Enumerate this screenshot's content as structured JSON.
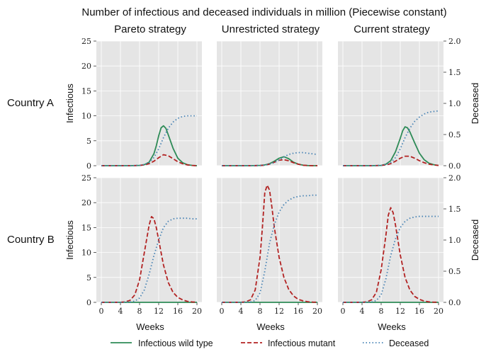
{
  "figure": {
    "title": "Number of infectious and deceased individuals in million (Piecewise constant)",
    "column_titles": [
      "Pareto strategy",
      "Unrestricted strategy",
      "Current strategy"
    ],
    "row_labels": [
      "Country A",
      "Country B"
    ],
    "left_axis_label": "Infectious",
    "right_axis_label": "Deceased",
    "x_axis_label": "Weeks",
    "legend": [
      {
        "label": "Infectious wild type",
        "color": "#2e8b57",
        "style": "solid"
      },
      {
        "label": "Infectious mutant",
        "color": "#b22222",
        "style": "dashed"
      },
      {
        "label": "Deceased",
        "color": "#4682b4",
        "style": "dotted"
      }
    ]
  },
  "chart_data": {
    "type": "line",
    "x_ticks": [
      0,
      4,
      8,
      12,
      16,
      20
    ],
    "left_ticks": [
      0,
      5,
      10,
      15,
      20,
      25
    ],
    "right_ticks": [
      "0.0",
      "0.5",
      "1.0",
      "1.5",
      "2.0"
    ],
    "xlim": [
      0,
      20
    ],
    "ylim_left": [
      0,
      25
    ],
    "ylim_right": [
      0,
      2.0
    ],
    "colors": {
      "wild": "#2e8b57",
      "mutant": "#b22222",
      "deceased": "#4682b4"
    },
    "grid": true,
    "legend_position": "bottom-center",
    "panels": [
      {
        "row": "Country A",
        "column": "Pareto strategy",
        "series": [
          {
            "name": "Infectious wild type",
            "axis": "left",
            "x": [
              0,
              2,
              4,
              6,
              8,
              9,
              10,
              11,
              11.5,
              12,
              12.5,
              13,
              13.5,
              14,
              15,
              16,
              17,
              18,
              19,
              20
            ],
            "y": [
              0,
              0,
              0,
              0,
              0.05,
              0.2,
              0.7,
              2.4,
              4.0,
              6.0,
              7.6,
              8.0,
              7.5,
              6.2,
              3.5,
              1.5,
              0.6,
              0.2,
              0.05,
              0
            ]
          },
          {
            "name": "Infectious mutant",
            "axis": "left",
            "x": [
              0,
              2,
              4,
              6,
              8,
              9,
              10,
              11,
              12,
              13,
              14,
              15,
              16,
              17,
              18,
              19,
              20
            ],
            "y": [
              0,
              0,
              0,
              0,
              0.05,
              0.15,
              0.4,
              0.9,
              1.6,
              2.2,
              2.0,
              1.4,
              0.8,
              0.4,
              0.15,
              0.05,
              0
            ]
          },
          {
            "name": "Deceased",
            "axis": "right",
            "x": [
              0,
              2,
              4,
              6,
              8,
              9,
              10,
              11,
              12,
              13,
              14,
              15,
              16,
              17,
              18,
              19,
              20
            ],
            "y": [
              0,
              0,
              0,
              0,
              0.005,
              0.02,
              0.05,
              0.13,
              0.27,
              0.45,
              0.6,
              0.7,
              0.76,
              0.79,
              0.8,
              0.8,
              0.8
            ]
          }
        ]
      },
      {
        "row": "Country A",
        "column": "Unrestricted strategy",
        "series": [
          {
            "name": "Infectious wild type",
            "axis": "left",
            "x": [
              0,
              2,
              4,
              6,
              8,
              9,
              10,
              11,
              12,
              13,
              14,
              15,
              16,
              17,
              18,
              19,
              20
            ],
            "y": [
              0,
              0,
              0,
              0,
              0.05,
              0.15,
              0.4,
              0.9,
              1.5,
              1.8,
              1.4,
              0.7,
              0.3,
              0.1,
              0.03,
              0,
              0
            ]
          },
          {
            "name": "Infectious mutant",
            "axis": "left",
            "x": [
              0,
              2,
              4,
              6,
              8,
              9,
              10,
              11,
              12,
              13,
              14,
              15,
              16,
              17,
              18,
              19,
              20
            ],
            "y": [
              0,
              0,
              0,
              0,
              0.03,
              0.1,
              0.3,
              0.7,
              1.1,
              1.2,
              1.0,
              0.6,
              0.3,
              0.1,
              0.03,
              0,
              0
            ]
          },
          {
            "name": "Deceased",
            "axis": "right",
            "x": [
              0,
              2,
              4,
              6,
              8,
              9,
              10,
              11,
              12,
              13,
              14,
              15,
              16,
              17,
              18,
              19,
              20
            ],
            "y": [
              0,
              0,
              0,
              0,
              0.003,
              0.01,
              0.025,
              0.05,
              0.09,
              0.14,
              0.18,
              0.2,
              0.21,
              0.21,
              0.2,
              0.19,
              0.18
            ]
          }
        ]
      },
      {
        "row": "Country A",
        "column": "Current strategy",
        "series": [
          {
            "name": "Infectious wild type",
            "axis": "left",
            "x": [
              0,
              2,
              4,
              6,
              8,
              9,
              10,
              11,
              12,
              12.5,
              13,
              13.5,
              14,
              15,
              16,
              17,
              18,
              19,
              20
            ],
            "y": [
              0,
              0,
              0,
              0,
              0.05,
              0.3,
              1.0,
              2.8,
              5.5,
              7.0,
              7.8,
              7.6,
              6.8,
              4.6,
              2.5,
              1.2,
              0.5,
              0.2,
              0.05
            ]
          },
          {
            "name": "Infectious mutant",
            "axis": "left",
            "x": [
              0,
              2,
              4,
              6,
              8,
              9,
              10,
              11,
              12,
              13,
              14,
              15,
              16,
              17,
              18,
              19,
              20
            ],
            "y": [
              0,
              0,
              0,
              0,
              0.05,
              0.15,
              0.4,
              0.9,
              1.5,
              1.9,
              1.9,
              1.5,
              1.0,
              0.6,
              0.3,
              0.15,
              0.05
            ]
          },
          {
            "name": "Deceased",
            "axis": "right",
            "x": [
              0,
              2,
              4,
              6,
              8,
              9,
              10,
              11,
              12,
              13,
              14,
              15,
              16,
              17,
              18,
              19,
              20
            ],
            "y": [
              0,
              0,
              0,
              0,
              0.005,
              0.02,
              0.05,
              0.13,
              0.27,
              0.45,
              0.6,
              0.71,
              0.78,
              0.83,
              0.86,
              0.87,
              0.88
            ]
          }
        ]
      },
      {
        "row": "Country B",
        "column": "Pareto strategy",
        "series": [
          {
            "name": "Infectious wild type",
            "axis": "left",
            "x": [
              0,
              20
            ],
            "y": [
              0,
              0
            ]
          },
          {
            "name": "Infectious mutant",
            "axis": "left",
            "x": [
              0,
              2,
              4,
              5,
              6,
              7,
              8,
              9,
              10,
              10.5,
              11,
              11.5,
              12,
              13,
              14,
              15,
              16,
              17,
              18,
              19,
              20
            ],
            "y": [
              0,
              0,
              0.02,
              0.1,
              0.4,
              1.5,
              4.5,
              10.0,
              15.5,
              17.2,
              16.8,
              15.0,
              12.5,
              7.5,
              4.0,
              2.0,
              1.0,
              0.5,
              0.2,
              0.08,
              0.03
            ]
          },
          {
            "name": "Deceased",
            "axis": "right",
            "x": [
              0,
              2,
              4,
              6,
              7,
              8,
              9,
              10,
              11,
              12,
              13,
              14,
              15,
              16,
              17,
              18,
              19,
              20
            ],
            "y": [
              0,
              0,
              0,
              0.005,
              0.02,
              0.07,
              0.2,
              0.45,
              0.75,
              1.0,
              1.2,
              1.3,
              1.34,
              1.35,
              1.35,
              1.35,
              1.34,
              1.34
            ]
          }
        ]
      },
      {
        "row": "Country B",
        "column": "Unrestricted strategy",
        "series": [
          {
            "name": "Infectious wild type",
            "axis": "left",
            "x": [
              0,
              20
            ],
            "y": [
              0,
              0
            ]
          },
          {
            "name": "Infectious mutant",
            "axis": "left",
            "x": [
              0,
              2,
              4,
              5,
              6,
              7,
              8,
              8.5,
              9,
              9.5,
              10,
              10.5,
              11,
              12,
              13,
              14,
              15,
              16,
              17,
              18,
              19,
              20
            ],
            "y": [
              0,
              0,
              0.02,
              0.1,
              0.5,
              2.5,
              9.0,
              15.0,
              22.0,
              23.5,
              22.5,
              19.0,
              15.0,
              9.0,
              5.0,
              2.6,
              1.3,
              0.6,
              0.3,
              0.12,
              0.05,
              0.02
            ]
          },
          {
            "name": "Deceased",
            "axis": "right",
            "x": [
              0,
              2,
              4,
              6,
              7,
              8,
              9,
              10,
              11,
              12,
              13,
              14,
              15,
              16,
              17,
              18,
              19,
              20
            ],
            "y": [
              0,
              0,
              0,
              0.005,
              0.03,
              0.15,
              0.5,
              0.95,
              1.25,
              1.45,
              1.57,
              1.64,
              1.68,
              1.7,
              1.71,
              1.71,
              1.72,
              1.72
            ]
          }
        ]
      },
      {
        "row": "Country B",
        "column": "Current strategy",
        "series": [
          {
            "name": "Infectious wild type",
            "axis": "left",
            "x": [
              0,
              20
            ],
            "y": [
              0,
              0
            ]
          },
          {
            "name": "Infectious mutant",
            "axis": "left",
            "x": [
              0,
              2,
              4,
              5,
              6,
              7,
              8,
              9,
              9.5,
              10,
              10.5,
              11,
              12,
              13,
              14,
              15,
              16,
              17,
              18,
              19,
              20
            ],
            "y": [
              0,
              0,
              0.02,
              0.1,
              0.5,
              2.0,
              6.5,
              13.5,
              17.5,
              19.0,
              18.0,
              15.5,
              9.5,
              5.0,
              2.5,
              1.2,
              0.6,
              0.25,
              0.1,
              0.04,
              0.02
            ]
          },
          {
            "name": "Deceased",
            "axis": "right",
            "x": [
              0,
              2,
              4,
              6,
              7,
              8,
              9,
              10,
              11,
              12,
              13,
              14,
              15,
              16,
              17,
              18,
              19,
              20
            ],
            "y": [
              0,
              0,
              0,
              0.005,
              0.03,
              0.12,
              0.38,
              0.75,
              1.02,
              1.2,
              1.3,
              1.35,
              1.37,
              1.38,
              1.38,
              1.38,
              1.38,
              1.38
            ]
          }
        ]
      }
    ]
  }
}
